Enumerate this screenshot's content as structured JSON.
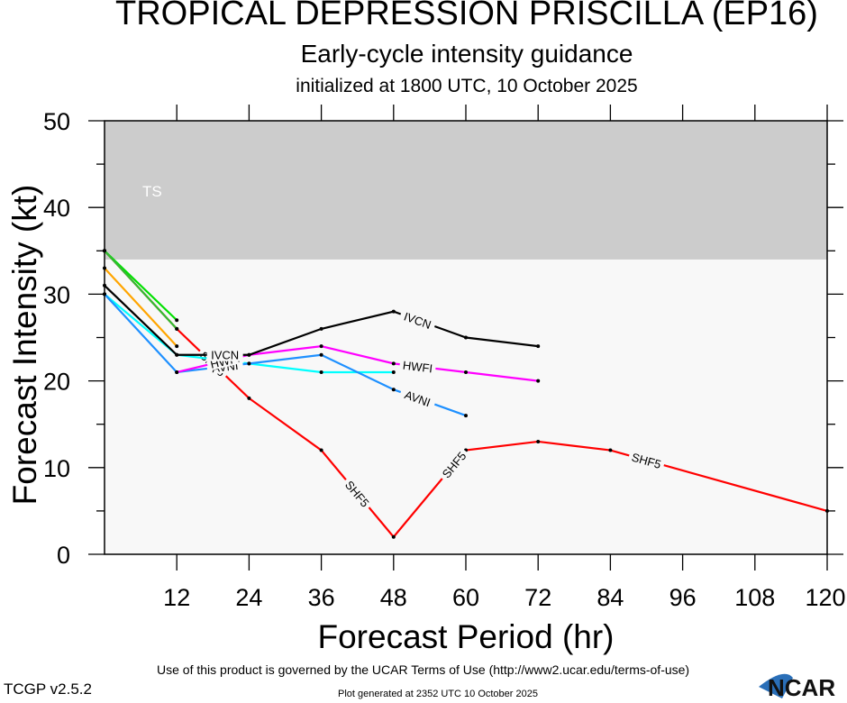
{
  "header": {
    "title": "TROPICAL DEPRESSION PRISCILLA (EP16)",
    "subtitle": "Early-cycle intensity guidance",
    "initialized": "initialized at 1800 UTC, 10 October 2025"
  },
  "footer": {
    "terms": "Use of this product is governed by the UCAR Terms of Use (http://www2.ucar.edu/terms-of-use)",
    "version": "TCGP v2.5.2",
    "generated": "Plot generated at 2352 UTC   10 October 2025",
    "logo_text": "NCAR"
  },
  "chart_data": {
    "type": "line",
    "title": "TROPICAL DEPRESSION PRISCILLA (EP16)",
    "xlabel": "Forecast Period (hr)",
    "ylabel": "Forecast Intensity (kt)",
    "xlim": [
      0,
      120
    ],
    "ylim": [
      0,
      50
    ],
    "xticks": [
      12,
      24,
      36,
      48,
      60,
      72,
      84,
      96,
      108,
      120
    ],
    "yticks": [
      0,
      10,
      20,
      30,
      40,
      50
    ],
    "grid": false,
    "bands": [
      {
        "label": "TS",
        "from": 34,
        "to": 50,
        "color": "#cccccc"
      }
    ],
    "series": [
      {
        "name": "SHF5",
        "color": "#ff0000",
        "label_positions": [
          18,
          42,
          58,
          90
        ],
        "x": [
          0,
          12,
          24,
          36,
          48,
          60,
          72,
          84,
          120
        ],
        "values": [
          35,
          26,
          18,
          12,
          2,
          12,
          13,
          12,
          5
        ]
      },
      {
        "name": "",
        "color": "#00e000",
        "x": [
          0,
          12
        ],
        "values": [
          35,
          27
        ]
      },
      {
        "name": "",
        "color": "#33bb33",
        "x": [
          0,
          12
        ],
        "values": [
          35,
          26
        ]
      },
      {
        "name": "",
        "color": "#ffa500",
        "x": [
          0,
          12
        ],
        "values": [
          33,
          24
        ]
      },
      {
        "name": "",
        "color": "#00ffff",
        "x": [
          0,
          12,
          24,
          36,
          48
        ],
        "values": [
          30,
          23,
          22,
          21,
          21
        ]
      },
      {
        "name": "AVNI",
        "color": "#1e90ff",
        "label_positions": [
          20,
          52
        ],
        "x": [
          0,
          12,
          24,
          36,
          48,
          60
        ],
        "values": [
          30,
          21,
          22,
          23,
          19,
          16
        ]
      },
      {
        "name": "HWFI",
        "color": "#ff00ff",
        "label_positions": [
          20,
          52
        ],
        "x": [
          12,
          24,
          36,
          48,
          60,
          72
        ],
        "values": [
          21,
          23,
          24,
          22,
          21,
          20
        ]
      },
      {
        "name": "IVCN",
        "color": "#000000",
        "label_positions": [
          20,
          52
        ],
        "x": [
          0,
          12,
          18,
          24,
          36,
          48,
          60,
          72
        ],
        "values": [
          31,
          23,
          23,
          23,
          26,
          28,
          25,
          24
        ]
      }
    ]
  }
}
